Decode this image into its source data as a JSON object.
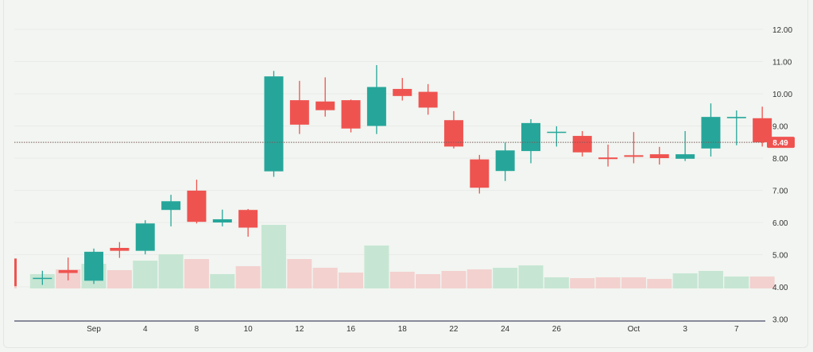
{
  "chart_data": {
    "type": "candlestick",
    "title": "",
    "xlabel": "",
    "ylabel": "",
    "ylim": [
      3,
      12.5
    ],
    "grid": true,
    "y_ticks": [
      "3.00",
      "4.00",
      "5.00",
      "6.00",
      "7.00",
      "8.00",
      "9.00",
      "10.00",
      "11.00",
      "12.00"
    ],
    "x_ticks": [
      {
        "index": 3,
        "label": "Sep"
      },
      {
        "index": 5,
        "label": "4"
      },
      {
        "index": 7,
        "label": "8"
      },
      {
        "index": 9,
        "label": "10"
      },
      {
        "index": 11,
        "label": "12"
      },
      {
        "index": 13,
        "label": "16"
      },
      {
        "index": 15,
        "label": "18"
      },
      {
        "index": 17,
        "label": "22"
      },
      {
        "index": 19,
        "label": "24"
      },
      {
        "index": 21,
        "label": "26"
      },
      {
        "index": 24,
        "label": "Oct"
      },
      {
        "index": 26,
        "label": "3"
      },
      {
        "index": 28,
        "label": "7"
      }
    ],
    "last_price": "8.49",
    "colors": {
      "up": "#26a69a",
      "down": "#ef5350",
      "volume_up": "#c6e6d3",
      "volume_down": "#f3d1cf",
      "last_price": "#ef5350"
    },
    "candles": [
      {
        "o": 4.88,
        "h": 4.9,
        "l": 4.0,
        "c": 4.02,
        "v": 23
      },
      {
        "o": 4.26,
        "h": 4.5,
        "l": 4.06,
        "c": 4.28,
        "v": 18
      },
      {
        "o": 4.52,
        "h": 4.91,
        "l": 4.2,
        "c": 4.43,
        "v": 24
      },
      {
        "o": 4.19,
        "h": 5.19,
        "l": 4.09,
        "c": 5.09,
        "v": 31
      },
      {
        "o": 5.21,
        "h": 5.39,
        "l": 4.9,
        "c": 5.12,
        "v": 23
      },
      {
        "o": 5.12,
        "h": 6.07,
        "l": 5.01,
        "c": 5.97,
        "v": 35
      },
      {
        "o": 6.39,
        "h": 6.86,
        "l": 5.88,
        "c": 6.66,
        "v": 43
      },
      {
        "o": 6.99,
        "h": 7.33,
        "l": 5.97,
        "c": 6.02,
        "v": 37
      },
      {
        "o": 6.0,
        "h": 6.4,
        "l": 5.88,
        "c": 6.1,
        "v": 18
      },
      {
        "o": 6.39,
        "h": 6.42,
        "l": 5.56,
        "c": 5.84,
        "v": 28
      },
      {
        "o": 7.59,
        "h": 10.71,
        "l": 7.42,
        "c": 10.54,
        "v": 80
      },
      {
        "o": 9.8,
        "h": 10.4,
        "l": 8.75,
        "c": 9.04,
        "v": 37
      },
      {
        "o": 9.76,
        "h": 10.51,
        "l": 9.29,
        "c": 9.49,
        "v": 26
      },
      {
        "o": 9.8,
        "h": 9.82,
        "l": 8.8,
        "c": 8.92,
        "v": 20
      },
      {
        "o": 9.0,
        "h": 10.89,
        "l": 8.75,
        "c": 10.21,
        "v": 54
      },
      {
        "o": 10.15,
        "h": 10.49,
        "l": 9.79,
        "c": 9.93,
        "v": 21
      },
      {
        "o": 10.06,
        "h": 10.3,
        "l": 9.35,
        "c": 9.57,
        "v": 18
      },
      {
        "o": 9.18,
        "h": 9.46,
        "l": 8.3,
        "c": 8.36,
        "v": 22
      },
      {
        "o": 7.96,
        "h": 8.1,
        "l": 6.9,
        "c": 7.08,
        "v": 24
      },
      {
        "o": 7.6,
        "h": 8.48,
        "l": 7.29,
        "c": 8.24,
        "v": 26
      },
      {
        "o": 8.22,
        "h": 9.21,
        "l": 7.84,
        "c": 9.09,
        "v": 29
      },
      {
        "o": 8.8,
        "h": 8.99,
        "l": 8.36,
        "c": 8.82,
        "v": 14
      },
      {
        "o": 8.69,
        "h": 8.84,
        "l": 8.05,
        "c": 8.18,
        "v": 13
      },
      {
        "o": 8.02,
        "h": 8.42,
        "l": 7.74,
        "c": 7.97,
        "v": 14
      },
      {
        "o": 8.09,
        "h": 8.81,
        "l": 7.84,
        "c": 8.04,
        "v": 14
      },
      {
        "o": 8.12,
        "h": 8.35,
        "l": 7.8,
        "c": 8.0,
        "v": 12
      },
      {
        "o": 7.98,
        "h": 8.84,
        "l": 7.91,
        "c": 8.12,
        "v": 19
      },
      {
        "o": 8.3,
        "h": 9.7,
        "l": 8.05,
        "c": 9.28,
        "v": 22
      },
      {
        "o": 9.24,
        "h": 9.48,
        "l": 8.4,
        "c": 9.28,
        "v": 15
      },
      {
        "o": 9.24,
        "h": 9.6,
        "l": 8.36,
        "c": 8.49,
        "v": 15
      }
    ]
  }
}
